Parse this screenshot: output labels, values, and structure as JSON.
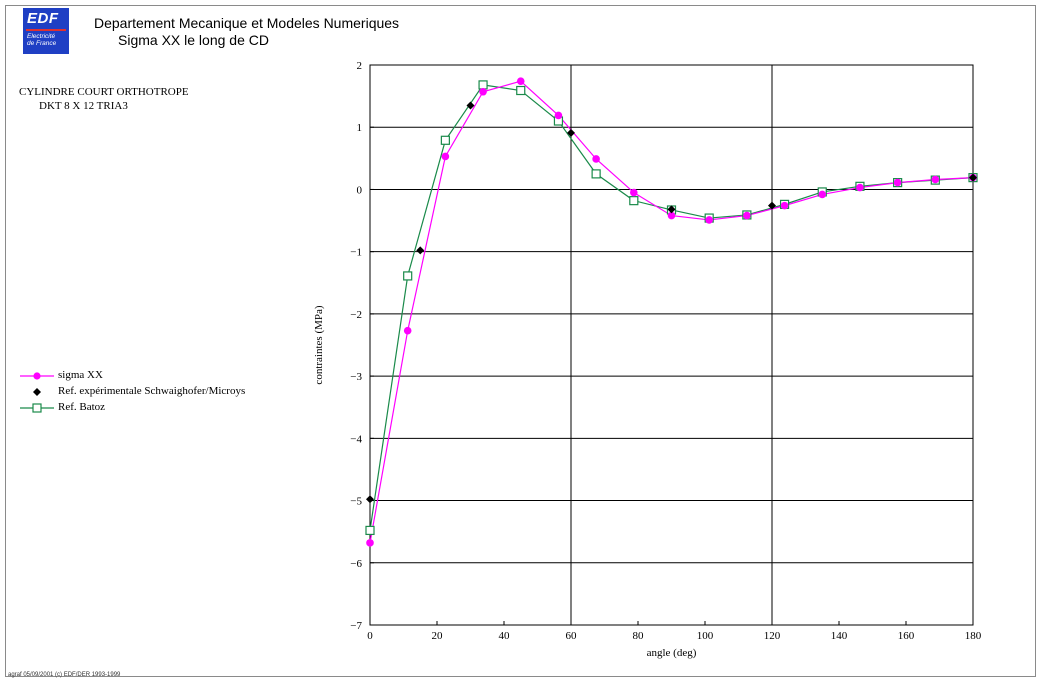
{
  "header": {
    "logo_text": "EDF",
    "logo_sub_line1": "Electricité",
    "logo_sub_line2": "de France",
    "title_line1": "Departement Mecanique et Modeles Numeriques",
    "title_line2": "Sigma XX le long de CD"
  },
  "case": {
    "line1": "CYLINDRE COURT ORTHOTROPE",
    "line2": "DKT 8 X 12 TRIA3"
  },
  "footer": "agraf 05/09/2001 (c) EDF/DER 1993-1999",
  "colors": {
    "sigma": "#ff00ff",
    "experimental": "#000000",
    "batoz": "#1a8a4a",
    "grid": "#000000"
  },
  "chart_data": {
    "type": "line",
    "title": "Sigma XX le long de CD",
    "xlabel": "angle (deg)",
    "ylabel": "contraintes (MPa)",
    "xlim": [
      0,
      180
    ],
    "ylim": [
      -7,
      2
    ],
    "xticks": [
      0,
      20,
      40,
      60,
      80,
      100,
      120,
      140,
      160,
      180
    ],
    "yticks": [
      -7,
      -6,
      -5,
      -4,
      -3,
      -2,
      -1,
      0,
      1,
      2
    ],
    "grid_x": [
      60,
      120,
      180
    ],
    "grid_y": [
      -6,
      -5,
      -4,
      -3,
      -2,
      -1,
      0,
      1,
      2
    ],
    "legend_position": "left",
    "series": [
      {
        "name": "sigma XX",
        "marker": "circle",
        "line": true,
        "x": [
          0,
          11.25,
          22.5,
          33.75,
          45,
          56.25,
          67.5,
          78.75,
          90,
          101.25,
          112.5,
          123.75,
          135,
          146.25,
          157.5,
          168.75,
          180
        ],
        "y": [
          -5.68,
          -2.27,
          0.53,
          1.57,
          1.74,
          1.19,
          0.49,
          -0.05,
          -0.42,
          -0.49,
          -0.42,
          -0.26,
          -0.08,
          0.03,
          0.11,
          0.16,
          0.19
        ]
      },
      {
        "name": "Ref. expérimentale Schwaighofer/Microys",
        "marker": "diamond",
        "line": false,
        "x": [
          0,
          15,
          30,
          60,
          90,
          120,
          180
        ],
        "y": [
          -4.98,
          -0.98,
          1.35,
          0.91,
          -0.32,
          -0.26,
          0.19
        ]
      },
      {
        "name": "Ref. Batoz",
        "marker": "square",
        "line": true,
        "x": [
          0,
          11.25,
          22.5,
          33.75,
          45,
          56.25,
          67.5,
          78.75,
          90,
          101.25,
          112.5,
          123.75,
          135,
          146.25,
          157.5,
          168.75,
          180
        ],
        "y": [
          -5.48,
          -1.39,
          0.79,
          1.68,
          1.59,
          1.1,
          0.25,
          -0.18,
          -0.33,
          -0.46,
          -0.41,
          -0.24,
          -0.04,
          0.05,
          0.11,
          0.15,
          0.19
        ]
      }
    ]
  }
}
